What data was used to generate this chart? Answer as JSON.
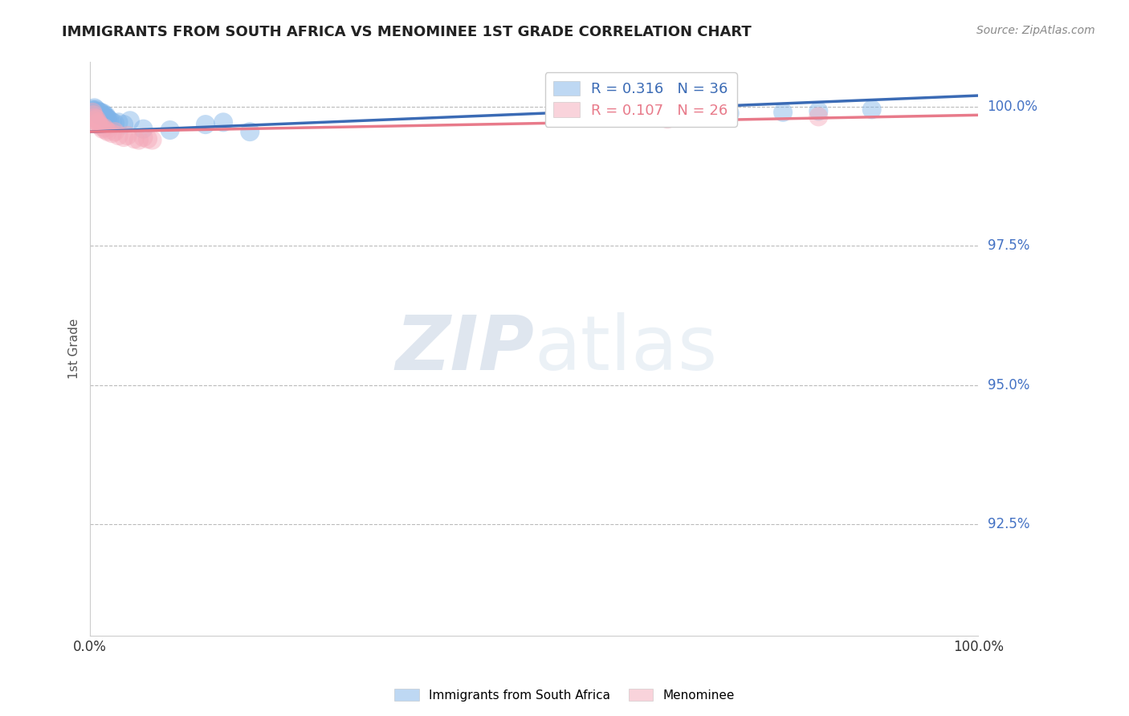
{
  "title": "IMMIGRANTS FROM SOUTH AFRICA VS MENOMINEE 1ST GRADE CORRELATION CHART",
  "source": "Source: ZipAtlas.com",
  "ylabel_label": "1st Grade",
  "ylabel_ticks": [
    "92.5%",
    "95.0%",
    "97.5%",
    "100.0%"
  ],
  "ylabel_values": [
    0.925,
    0.95,
    0.975,
    1.0
  ],
  "xmin": 0.0,
  "xmax": 1.0,
  "ymin": 0.905,
  "ymax": 1.008,
  "blue_scatter_x": [
    0.003,
    0.004,
    0.005,
    0.006,
    0.007,
    0.008,
    0.009,
    0.01,
    0.011,
    0.012,
    0.013,
    0.014,
    0.015,
    0.016,
    0.017,
    0.018,
    0.019,
    0.02,
    0.022,
    0.025,
    0.028,
    0.032,
    0.038,
    0.045,
    0.06,
    0.09,
    0.13,
    0.15,
    0.18,
    0.55,
    0.65,
    0.68,
    0.72,
    0.78,
    0.82,
    0.88
  ],
  "blue_scatter_y": [
    0.9995,
    0.9993,
    0.9998,
    0.999,
    0.9995,
    0.9992,
    0.9988,
    0.9991,
    0.9985,
    0.999,
    0.9987,
    0.9983,
    0.9988,
    0.9985,
    0.9982,
    0.9984,
    0.998,
    0.9978,
    0.9976,
    0.9972,
    0.997,
    0.9972,
    0.9968,
    0.9975,
    0.996,
    0.9958,
    0.9968,
    0.9972,
    0.9955,
    0.9985,
    0.9988,
    0.999,
    0.9988,
    0.999,
    0.9992,
    0.9995
  ],
  "pink_scatter_x": [
    0.003,
    0.004,
    0.005,
    0.006,
    0.007,
    0.008,
    0.009,
    0.01,
    0.012,
    0.014,
    0.016,
    0.018,
    0.02,
    0.025,
    0.028,
    0.032,
    0.038,
    0.042,
    0.05,
    0.055,
    0.06,
    0.065,
    0.07,
    0.55,
    0.65,
    0.82
  ],
  "pink_scatter_y": [
    0.999,
    0.9985,
    0.998,
    0.9975,
    0.9978,
    0.997,
    0.9972,
    0.9968,
    0.9965,
    0.996,
    0.9962,
    0.9958,
    0.9955,
    0.9952,
    0.9955,
    0.9948,
    0.9945,
    0.9948,
    0.9942,
    0.994,
    0.9945,
    0.9942,
    0.994,
    0.9985,
    0.9978,
    0.9982
  ],
  "blue_line_x0": 0.0,
  "blue_line_x1": 1.0,
  "blue_line_y0": 0.9955,
  "blue_line_y1": 1.002,
  "pink_line_x0": 0.0,
  "pink_line_x1": 1.0,
  "pink_line_y0": 0.9955,
  "pink_line_y1": 0.9985,
  "legend_text_blue": "R = 0.316   N = 36",
  "legend_text_pink": "R = 0.107   N = 26",
  "blue_color": "#7EB3E8",
  "pink_color": "#F4A8B8",
  "blue_line_color": "#3B6BB5",
  "pink_line_color": "#E87A8A",
  "bottom_legend_blue": "Immigrants from South Africa",
  "bottom_legend_pink": "Menominee",
  "watermark_zip": "ZIP",
  "watermark_atlas": "atlas",
  "grid_color": "#BBBBBB",
  "right_label_color": "#4472C4",
  "title_color": "#222222",
  "source_color": "#888888"
}
